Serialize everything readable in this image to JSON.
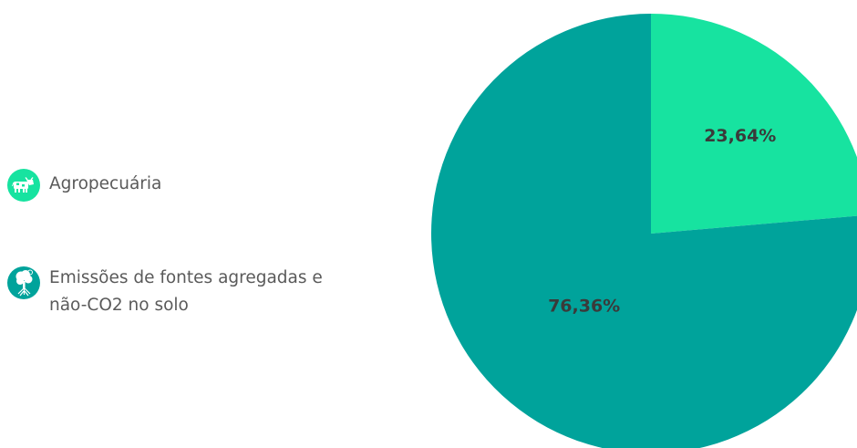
{
  "chart_data": {
    "type": "pie",
    "categories": [
      "Agropecuária",
      "Emissões de fontes agregadas e não-CO2 no solo"
    ],
    "values": [
      23.64,
      76.36
    ],
    "labels": [
      "23,64%",
      "76,36%"
    ],
    "colors": [
      "#17e3a0",
      "#00a39b"
    ],
    "start_angle_deg": 0,
    "direction": "clockwise",
    "legend_position": "left"
  },
  "legend": {
    "items": [
      {
        "label": "Agropecuária",
        "icon": "cow-icon",
        "color": "#17e3a0"
      },
      {
        "label": "Emissões de fontes agregadas e não-CO2 no solo",
        "icon": "tree-icon",
        "color": "#00a39b"
      }
    ]
  }
}
